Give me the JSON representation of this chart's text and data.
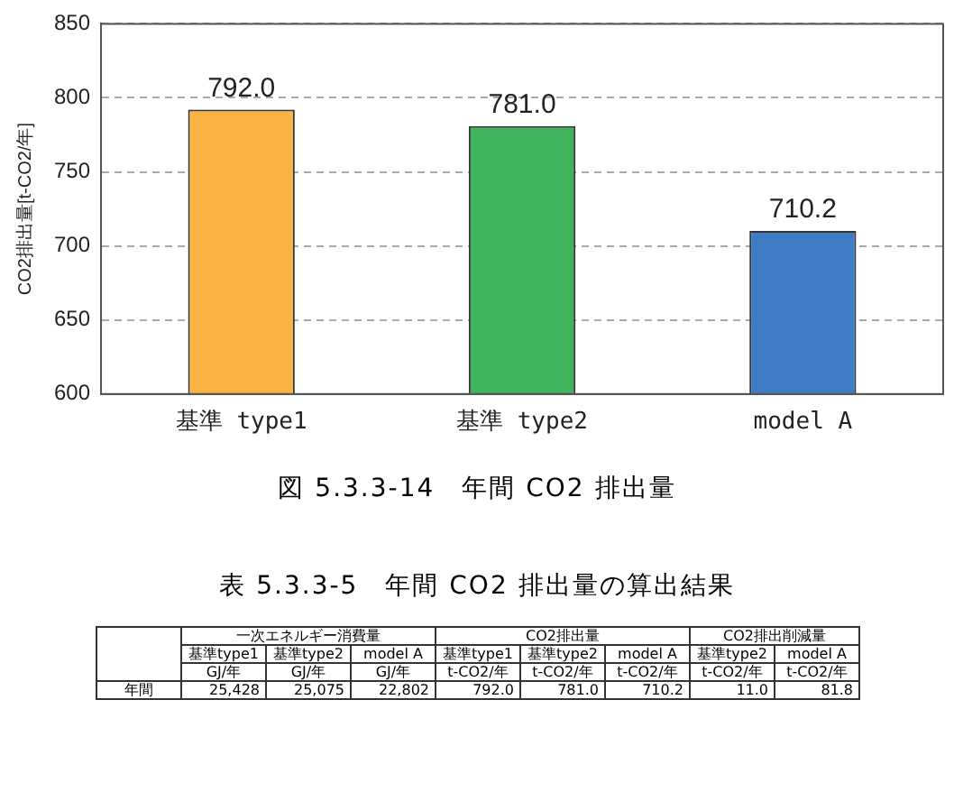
{
  "chart_data": {
    "type": "bar",
    "title": "図 5.3.3-14　年間 CO2 排出量",
    "ylabel": "CO2排出量[t-CO2/年]",
    "categories": [
      "基準 type1",
      "基準 type2",
      "model A"
    ],
    "values": [
      792.0,
      781.0,
      710.2
    ],
    "colors": [
      "#fbb444",
      "#40b45c",
      "#3f7cc4"
    ],
    "ylim": [
      600,
      850
    ],
    "yticks": [
      600,
      650,
      700,
      750,
      800,
      850
    ],
    "grid": "y",
    "value_labels": [
      "792.0",
      "781.0",
      "710.2"
    ],
    "legend": false,
    "annotations": [
      "表 5.3.3-5　年間 CO2 排出量の算出結果",
      "一次エネルギー消費量",
      "CO2排出量",
      "CO2排出削減量",
      "基準type1",
      "基準type2",
      "model A",
      "基準type1",
      "基準type2",
      "model A",
      "基準type2",
      "model A",
      "GJ/年",
      "GJ/年",
      "GJ/年",
      "t-CO2/年",
      "t-CO2/年",
      "t-CO2/年",
      "t-CO2/年",
      "t-CO2/年",
      "年間",
      "25,428",
      "25,075",
      "22,802",
      "792.0",
      "781.0",
      "710.2",
      "11.0",
      "81.8"
    ]
  }
}
